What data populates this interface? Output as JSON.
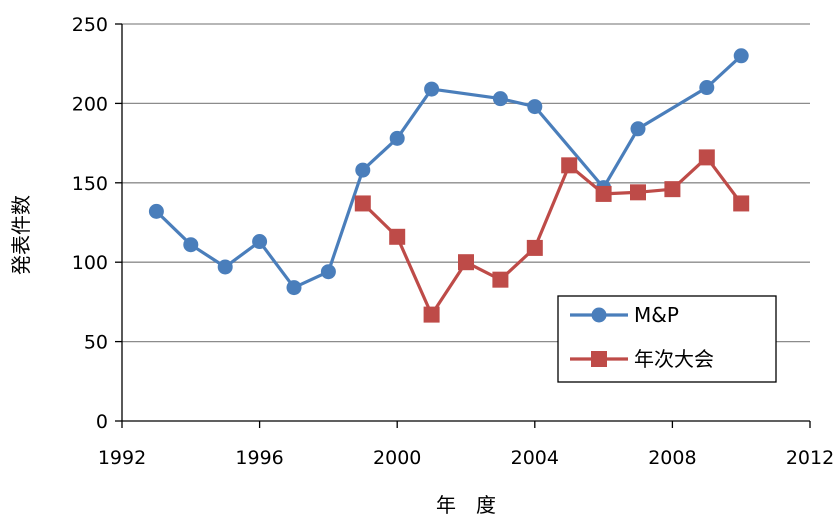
{
  "chart_data": {
    "type": "line",
    "xlabel": "年　度",
    "ylabel": "発表件数",
    "xlim": [
      1992,
      2012
    ],
    "ylim": [
      0,
      250
    ],
    "xticks": [
      1992,
      1996,
      2000,
      2004,
      2008,
      2012
    ],
    "yticks": [
      0,
      50,
      100,
      150,
      200,
      250
    ],
    "grid": "horizontal",
    "legend_position": "bottom-right",
    "series": [
      {
        "name": "M&P",
        "color": "#4a7ebb",
        "marker": "circle",
        "points": [
          [
            1993,
            132
          ],
          [
            1994,
            111
          ],
          [
            1995,
            97
          ],
          [
            1996,
            113
          ],
          [
            1997,
            84
          ],
          [
            1998,
            94
          ],
          [
            1999,
            158
          ],
          [
            2000,
            178
          ],
          [
            2001,
            209
          ],
          [
            2003,
            203
          ],
          [
            2004,
            198
          ],
          [
            2006,
            147
          ],
          [
            2007,
            184
          ],
          [
            2009,
            210
          ],
          [
            2010,
            230
          ]
        ]
      },
      {
        "name": "年次大会",
        "color": "#be4b48",
        "marker": "square",
        "points": [
          [
            1999,
            137
          ],
          [
            2000,
            116
          ],
          [
            2001,
            67
          ],
          [
            2002,
            100
          ],
          [
            2003,
            89
          ],
          [
            2004,
            109
          ],
          [
            2005,
            161
          ],
          [
            2006,
            143
          ],
          [
            2007,
            144
          ],
          [
            2008,
            146
          ],
          [
            2009,
            166
          ],
          [
            2010,
            137
          ]
        ]
      }
    ]
  }
}
